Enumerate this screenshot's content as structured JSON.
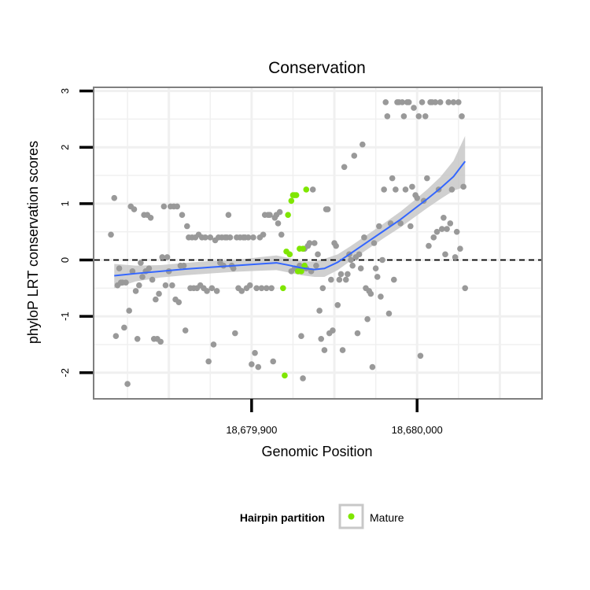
{
  "chart_data": {
    "type": "scatter",
    "title": "Conservation",
    "xlabel": "Genomic Position",
    "ylabel": "phyloP LRT conservation scores",
    "xlim": [
      18679805,
      18680075
    ],
    "ylim": [
      -2.45,
      3.05
    ],
    "x_ticks": [
      {
        "value": 18679900,
        "label": "18,679,900"
      },
      {
        "value": 18680000,
        "label": "18,680,000"
      }
    ],
    "y_ticks": [
      {
        "value": -2,
        "label": "-2"
      },
      {
        "value": -1,
        "label": "-1"
      },
      {
        "value": 0,
        "label": "0"
      },
      {
        "value": 1,
        "label": "1"
      },
      {
        "value": 2,
        "label": "2"
      },
      {
        "value": 3,
        "label": "3"
      }
    ],
    "reference_line": {
      "y": 0,
      "style": "dashed",
      "color": "#000000"
    },
    "grid": true,
    "legend": {
      "title": "Hairpin partition",
      "position": "bottom",
      "entries": [
        {
          "label": "Mature",
          "color": "#7fe600"
        }
      ]
    },
    "colors": {
      "points": "#999999",
      "mature": "#7fe600",
      "smooth": "#3366ff",
      "band": "#c8c8c8"
    },
    "series": [
      {
        "name": "",
        "color": "#999999",
        "points": [
          [
            18679817,
            1.1
          ],
          [
            18679815,
            0.45
          ],
          [
            18679818,
            -1.35
          ],
          [
            18679819,
            -0.45
          ],
          [
            18679820,
            -0.15
          ],
          [
            18679821,
            -0.4
          ],
          [
            18679822,
            -0.4
          ],
          [
            18679823,
            -1.2
          ],
          [
            18679824,
            -0.4
          ],
          [
            18679825,
            -2.2
          ],
          [
            18679826,
            -0.9
          ],
          [
            18679827,
            0.95
          ],
          [
            18679828,
            -0.2
          ],
          [
            18679829,
            0.9
          ],
          [
            18679830,
            -0.55
          ],
          [
            18679831,
            -1.4
          ],
          [
            18679832,
            -0.45
          ],
          [
            18679833,
            -0.05
          ],
          [
            18679834,
            -0.3
          ],
          [
            18679835,
            0.8
          ],
          [
            18679836,
            -0.2
          ],
          [
            18679837,
            0.8
          ],
          [
            18679838,
            -0.15
          ],
          [
            18679839,
            0.75
          ],
          [
            18679840,
            -0.35
          ],
          [
            18679841,
            -1.4
          ],
          [
            18679842,
            -0.7
          ],
          [
            18679843,
            -1.4
          ],
          [
            18679844,
            -0.6
          ],
          [
            18679845,
            -1.45
          ],
          [
            18679846,
            0.05
          ],
          [
            18679847,
            0.95
          ],
          [
            18679848,
            -0.45
          ],
          [
            18679849,
            0.05
          ],
          [
            18679850,
            -0.2
          ],
          [
            18679851,
            0.95
          ],
          [
            18679852,
            -0.45
          ],
          [
            18679853,
            0.95
          ],
          [
            18679854,
            -0.7
          ],
          [
            18679855,
            0.95
          ],
          [
            18679856,
            -0.75
          ],
          [
            18679857,
            -0.1
          ],
          [
            18679858,
            0.8
          ],
          [
            18679859,
            -0.1
          ],
          [
            18679860,
            -1.25
          ],
          [
            18679861,
            0.6
          ],
          [
            18679862,
            0.4
          ],
          [
            18679863,
            -0.5
          ],
          [
            18679864,
            0.4
          ],
          [
            18679865,
            -0.5
          ],
          [
            18679866,
            0.4
          ],
          [
            18679867,
            -0.5
          ],
          [
            18679868,
            0.45
          ],
          [
            18679869,
            -0.45
          ],
          [
            18679870,
            0.4
          ],
          [
            18679871,
            -0.5
          ],
          [
            18679872,
            0.4
          ],
          [
            18679873,
            -0.55
          ],
          [
            18679874,
            -1.8
          ],
          [
            18679875,
            0.4
          ],
          [
            18679876,
            -0.5
          ],
          [
            18679877,
            -1.5
          ],
          [
            18679878,
            0.35
          ],
          [
            18679879,
            -0.55
          ],
          [
            18679880,
            0.4
          ],
          [
            18679881,
            -0.05
          ],
          [
            18679882,
            0.4
          ],
          [
            18679883,
            -0.1
          ],
          [
            18679884,
            0.4
          ],
          [
            18679885,
            0.4
          ],
          [
            18679886,
            0.8
          ],
          [
            18679887,
            0.4
          ],
          [
            18679888,
            -0.1
          ],
          [
            18679889,
            -0.15
          ],
          [
            18679890,
            -1.3
          ],
          [
            18679891,
            0.4
          ],
          [
            18679892,
            -0.5
          ],
          [
            18679893,
            0.4
          ],
          [
            18679894,
            -0.55
          ],
          [
            18679895,
            0.4
          ],
          [
            18679896,
            0.4
          ],
          [
            18679897,
            -0.5
          ],
          [
            18679898,
            0.4
          ],
          [
            18679899,
            -0.45
          ],
          [
            18679900,
            -1.85
          ],
          [
            18679901,
            0.4
          ],
          [
            18679902,
            -1.65
          ],
          [
            18679903,
            -0.5
          ],
          [
            18679904,
            -1.9
          ],
          [
            18679905,
            0.4
          ],
          [
            18679906,
            -0.5
          ],
          [
            18679907,
            0.45
          ],
          [
            18679908,
            0.8
          ],
          [
            18679909,
            -0.5
          ],
          [
            18679910,
            0.8
          ],
          [
            18679911,
            0.8
          ],
          [
            18679912,
            -0.5
          ],
          [
            18679913,
            -1.8
          ],
          [
            18679914,
            0.75
          ],
          [
            18679915,
            0.8
          ],
          [
            18679916,
            0.65
          ],
          [
            18679917,
            0.85
          ],
          [
            18679918,
            0.45
          ],
          [
            18679924,
            -0.2
          ],
          [
            18679926,
            -0.15
          ],
          [
            18679928,
            -0.15
          ],
          [
            18679929,
            -0.1
          ],
          [
            18679930,
            -1.35
          ],
          [
            18679931,
            -2.1
          ],
          [
            18679932,
            0.2
          ],
          [
            18679933,
            -0.15
          ],
          [
            18679934,
            0.25
          ],
          [
            18679935,
            0.3
          ],
          [
            18679936,
            -0.2
          ],
          [
            18679937,
            1.25
          ],
          [
            18679938,
            0.3
          ],
          [
            18679939,
            -0.1
          ],
          [
            18679940,
            0.1
          ],
          [
            18679941,
            -0.9
          ],
          [
            18679942,
            -1.4
          ],
          [
            18679943,
            -0.5
          ],
          [
            18679944,
            -1.6
          ],
          [
            18679945,
            0.9
          ],
          [
            18679946,
            0.9
          ],
          [
            18679947,
            -1.3
          ],
          [
            18679948,
            -0.35
          ],
          [
            18679949,
            -1.25
          ],
          [
            18679950,
            0.3
          ],
          [
            18679951,
            0.25
          ],
          [
            18679952,
            -0.8
          ],
          [
            18679953,
            -0.35
          ],
          [
            18679954,
            -0.25
          ],
          [
            18679955,
            -1.6
          ],
          [
            18679956,
            1.65
          ],
          [
            18679957,
            -0.35
          ],
          [
            18679958,
            -0.25
          ],
          [
            18679959,
            0.1
          ],
          [
            18679960,
            0.0
          ],
          [
            18679961,
            -0.1
          ],
          [
            18679962,
            1.85
          ],
          [
            18679963,
            0.05
          ],
          [
            18679964,
            -1.3
          ],
          [
            18679965,
            0.1
          ],
          [
            18679966,
            -0.15
          ],
          [
            18679967,
            2.05
          ],
          [
            18679968,
            0.4
          ],
          [
            18679969,
            -0.5
          ],
          [
            18679970,
            -1.05
          ],
          [
            18679971,
            -0.55
          ],
          [
            18679972,
            -0.6
          ],
          [
            18679973,
            -1.9
          ],
          [
            18679974,
            0.3
          ],
          [
            18679975,
            -0.15
          ],
          [
            18679976,
            -0.3
          ],
          [
            18679977,
            0.6
          ],
          [
            18679978,
            -0.65
          ],
          [
            18679979,
            0.0
          ],
          [
            18679980,
            1.25
          ],
          [
            18679981,
            2.8
          ],
          [
            18679982,
            2.55
          ],
          [
            18679983,
            -0.95
          ],
          [
            18679984,
            0.65
          ],
          [
            18679985,
            1.45
          ],
          [
            18679986,
            -0.35
          ],
          [
            18679987,
            1.25
          ],
          [
            18679988,
            2.8
          ],
          [
            18679989,
            2.8
          ],
          [
            18679990,
            0.65
          ],
          [
            18679991,
            2.8
          ],
          [
            18679992,
            2.55
          ],
          [
            18679993,
            1.25
          ],
          [
            18679994,
            2.8
          ],
          [
            18679995,
            2.8
          ],
          [
            18679996,
            0.6
          ],
          [
            18679997,
            1.3
          ],
          [
            18679998,
            2.7
          ],
          [
            18679999,
            1.15
          ],
          [
            18680000,
            1.1
          ],
          [
            18680001,
            2.55
          ],
          [
            18680002,
            -1.7
          ],
          [
            18680003,
            2.8
          ],
          [
            18680004,
            1.05
          ],
          [
            18680005,
            2.55
          ],
          [
            18680006,
            1.45
          ],
          [
            18680007,
            0.25
          ],
          [
            18680008,
            2.8
          ],
          [
            18680009,
            2.8
          ],
          [
            18680010,
            0.4
          ],
          [
            18680011,
            2.8
          ],
          [
            18680012,
            0.5
          ],
          [
            18680013,
            1.25
          ],
          [
            18680014,
            2.8
          ],
          [
            18680015,
            0.55
          ],
          [
            18680016,
            0.75
          ],
          [
            18680017,
            0.1
          ],
          [
            18680018,
            0.55
          ],
          [
            18680019,
            2.8
          ],
          [
            18680020,
            0.65
          ],
          [
            18680021,
            1.25
          ],
          [
            18680022,
            2.8
          ],
          [
            18680023,
            0.05
          ],
          [
            18680024,
            0.5
          ],
          [
            18680025,
            2.8
          ],
          [
            18680026,
            0.2
          ],
          [
            18680027,
            2.55
          ],
          [
            18680028,
            1.3
          ],
          [
            18680029,
            -0.5
          ]
        ]
      },
      {
        "name": "Mature",
        "color": "#7fe600",
        "points": [
          [
            18679919,
            -0.5
          ],
          [
            18679920,
            -2.05
          ],
          [
            18679921,
            0.15
          ],
          [
            18679922,
            0.8
          ],
          [
            18679923,
            0.1
          ],
          [
            18679924,
            1.05
          ],
          [
            18679925,
            1.15
          ],
          [
            18679926,
            1.15
          ],
          [
            18679927,
            1.15
          ],
          [
            18679928,
            -0.2
          ],
          [
            18679929,
            0.2
          ],
          [
            18679930,
            -0.2
          ],
          [
            18679931,
            0.2
          ],
          [
            18679932,
            -0.1
          ],
          [
            18679933,
            1.25
          ]
        ]
      }
    ],
    "smooth": {
      "color": "#3366ff",
      "line": [
        [
          18679817,
          -0.28
        ],
        [
          18679830,
          -0.24
        ],
        [
          18679845,
          -0.2
        ],
        [
          18679860,
          -0.16
        ],
        [
          18679875,
          -0.13
        ],
        [
          18679890,
          -0.1
        ],
        [
          18679905,
          -0.07
        ],
        [
          18679915,
          -0.05
        ],
        [
          18679922,
          -0.09
        ],
        [
          18679930,
          -0.14
        ],
        [
          18679938,
          -0.17
        ],
        [
          18679944,
          -0.15
        ],
        [
          18679952,
          -0.04
        ],
        [
          18679960,
          0.12
        ],
        [
          18679970,
          0.32
        ],
        [
          18679980,
          0.52
        ],
        [
          18679990,
          0.72
        ],
        [
          18679998,
          0.9
        ],
        [
          18680006,
          1.08
        ],
        [
          18680014,
          1.27
        ],
        [
          18680022,
          1.48
        ],
        [
          18680029,
          1.75
        ]
      ],
      "upper": [
        [
          18679817,
          -0.07
        ],
        [
          18679830,
          -0.1
        ],
        [
          18679845,
          -0.09
        ],
        [
          18679860,
          -0.05
        ],
        [
          18679875,
          -0.02
        ],
        [
          18679890,
          0.0
        ],
        [
          18679905,
          0.05
        ],
        [
          18679915,
          0.08
        ],
        [
          18679922,
          0.04
        ],
        [
          18679930,
          -0.02
        ],
        [
          18679938,
          -0.03
        ],
        [
          18679944,
          0.02
        ],
        [
          18679952,
          0.1
        ],
        [
          18679960,
          0.25
        ],
        [
          18679970,
          0.45
        ],
        [
          18679980,
          0.65
        ],
        [
          18679990,
          0.86
        ],
        [
          18679998,
          1.05
        ],
        [
          18680006,
          1.25
        ],
        [
          18680014,
          1.47
        ],
        [
          18680022,
          1.76
        ],
        [
          18680029,
          2.2
        ]
      ],
      "lower": [
        [
          18679817,
          -0.5
        ],
        [
          18679830,
          -0.38
        ],
        [
          18679845,
          -0.31
        ],
        [
          18679860,
          -0.27
        ],
        [
          18679875,
          -0.24
        ],
        [
          18679890,
          -0.21
        ],
        [
          18679905,
          -0.19
        ],
        [
          18679915,
          -0.18
        ],
        [
          18679922,
          -0.22
        ],
        [
          18679930,
          -0.27
        ],
        [
          18679938,
          -0.3
        ],
        [
          18679944,
          -0.3
        ],
        [
          18679952,
          -0.18
        ],
        [
          18679960,
          -0.01
        ],
        [
          18679970,
          0.19
        ],
        [
          18679980,
          0.39
        ],
        [
          18679990,
          0.58
        ],
        [
          18679998,
          0.75
        ],
        [
          18680006,
          0.92
        ],
        [
          18680014,
          1.08
        ],
        [
          18680022,
          1.23
        ],
        [
          18680029,
          1.3
        ]
      ]
    }
  }
}
